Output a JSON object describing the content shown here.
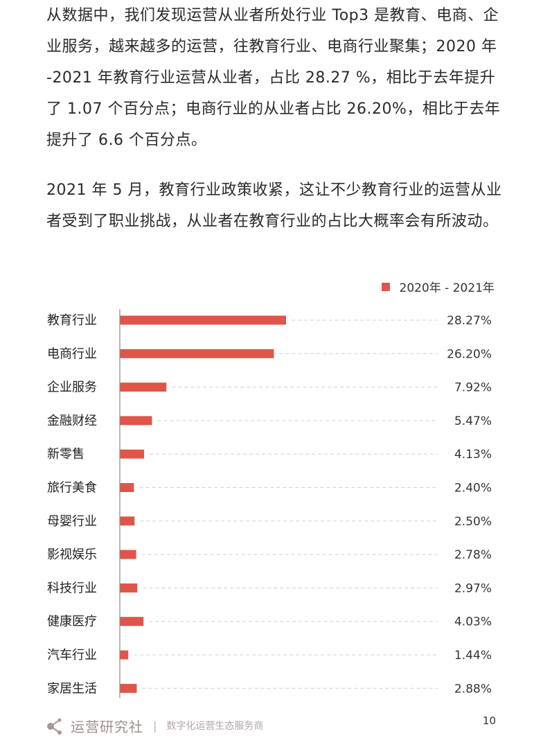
{
  "paragraphs": [
    "从数据中，我们发现运营从业者所处行业 Top3 是教育、电商、企业服务，越来越多的运营，往教育行业、电商行业聚集；2020 年 -2021 年教育行业运营从业者，占比 28.27 %，相比于去年提升了 1.07 个百分点；电商行业的从业者占比 26.20%，相比于去年提升了 6.6 个百分点。",
    "2021 年 5 月，教育行业政策收紧，这让不少教育行业的运营从业者受到了职业挑战，从业者在教育行业的占比大概率会有所波动。"
  ],
  "chart_data": {
    "type": "bar",
    "orientation": "horizontal",
    "title": "",
    "xlabel": "",
    "ylabel": "",
    "legend": {
      "position": "top-right",
      "entries": [
        "2020年 - 2021年"
      ]
    },
    "series_color": "#e05549",
    "categories": [
      "教育行业",
      "电商行业",
      "企业服务",
      "金融财经",
      "新零售",
      "旅行美食",
      "母婴行业",
      "影视娱乐",
      "科技行业",
      "健康医疗",
      "汽车行业",
      "家居生活"
    ],
    "series": [
      {
        "name": "2020年 - 2021年",
        "values": [
          28.27,
          26.2,
          7.92,
          5.47,
          4.13,
          2.4,
          2.5,
          2.78,
          2.97,
          4.03,
          1.44,
          2.88
        ],
        "labels": [
          "28.27%",
          "26.20%",
          "7.92%",
          "5.47%",
          "4.13%",
          "2.40%",
          "2.50%",
          "2.78%",
          "2.97%",
          "4.03%",
          "1.44%",
          "2.88%"
        ]
      }
    ],
    "xlim": [
      0,
      28.27
    ],
    "grid": false,
    "leader_lines": "dashed"
  },
  "footer": {
    "logo_icon": "share-nodes-icon",
    "brand": "运营研究社",
    "separator": "|",
    "tagline": "数字化运营生态服务商",
    "page_number": "10"
  }
}
